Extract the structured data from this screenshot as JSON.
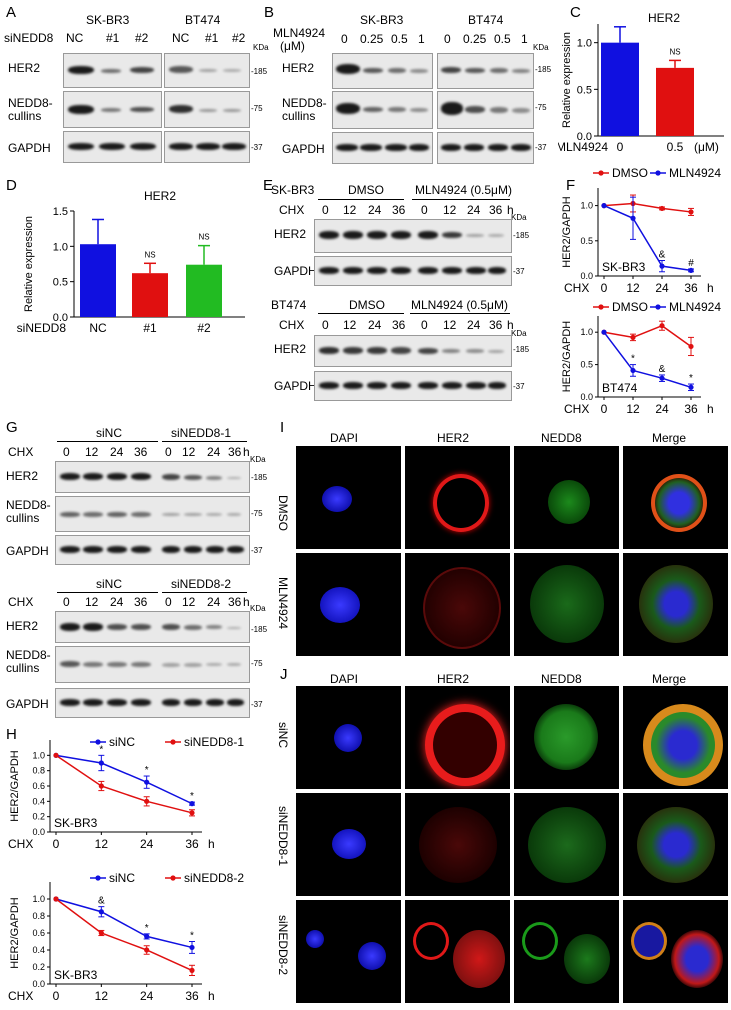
{
  "panels": {
    "A": "A",
    "B": "B",
    "C": "C",
    "D": "D",
    "E": "E",
    "F": "F",
    "G": "G",
    "H": "H",
    "I": "I",
    "J": "J"
  },
  "panelA": {
    "cell_lines": [
      "SK-BR3",
      "BT474"
    ],
    "row_label": "siNEDD8",
    "lanes": [
      "NC",
      "#1",
      "#2",
      "NC",
      "#1",
      "#2"
    ],
    "kda": "KDa",
    "proteins": [
      "HER2",
      "NEDD8-",
      "cullins",
      "GAPDH"
    ],
    "markers": [
      "-185",
      "-75",
      "-37"
    ]
  },
  "panelB": {
    "cell_lines": [
      "SK-BR3",
      "BT474"
    ],
    "row_label": "MLN4924",
    "unit": "(μM)",
    "lanes": [
      "0",
      "0.25",
      "0.5",
      "1",
      "0",
      "0.25",
      "0.5",
      "1"
    ],
    "kda": "KDa",
    "proteins": [
      "HER2",
      "NEDD8-",
      "cullins",
      "GAPDH"
    ],
    "markers": [
      "-185",
      "-75",
      "-37"
    ]
  },
  "panelE": {
    "top_line": "SK-BR3",
    "bottom_line": "BT474",
    "treatments": [
      "DMSO",
      "MLN4924 (0.5μM)"
    ],
    "chx": "CHX",
    "times": [
      "0",
      "12",
      "24",
      "36",
      "0",
      "12",
      "24",
      "36"
    ],
    "h": "h",
    "kda": "KDa",
    "proteins": [
      "HER2",
      "GAPDH"
    ],
    "markers": [
      "-185",
      "-37"
    ]
  },
  "panelG": {
    "top_group": [
      "siNC",
      "siNEDD8-1"
    ],
    "bottom_group": [
      "siNC",
      "siNEDD8-2"
    ],
    "chx": "CHX",
    "times": [
      "0",
      "12",
      "24",
      "36",
      "0",
      "12",
      "24",
      "36"
    ],
    "h": "h",
    "kda": "KDa",
    "proteins": [
      "HER2",
      "NEDD8-",
      "cullins",
      "GAPDH"
    ],
    "markers": [
      "-185",
      "-75",
      "-37"
    ]
  },
  "panelI": {
    "columns": [
      "DAPI",
      "HER2",
      "NEDD8",
      "Merge"
    ],
    "rows": [
      "DMSO",
      "MLN4924"
    ]
  },
  "panelJ": {
    "columns": [
      "DAPI",
      "HER2",
      "NEDD8",
      "Merge"
    ],
    "rows": [
      "siNC",
      "siNEDD8-1",
      "siNEDD8-2"
    ]
  },
  "colors": {
    "blue": "#1010e0",
    "red": "#e01010",
    "green": "#22bb22",
    "band": "#1a1a1a"
  },
  "chart_data": [
    {
      "id": "C",
      "type": "bar",
      "title": "HER2",
      "ylabel": "Relative expression",
      "xlabel": "MLN4924",
      "x_unit": "(μM)",
      "categories": [
        "0",
        "0.5"
      ],
      "values": [
        1.0,
        0.73
      ],
      "errors": [
        0.17,
        0.08
      ],
      "bar_colors": [
        "#1010e0",
        "#e01010"
      ],
      "annotations": [
        "",
        "NS"
      ],
      "ylim": [
        0,
        1.2
      ],
      "yticks": [
        0.0,
        0.5,
        1.0
      ]
    },
    {
      "id": "D",
      "type": "bar",
      "title": "HER2",
      "ylabel": "Relative expression",
      "xlabel": "siNEDD8",
      "categories": [
        "NC",
        "#1",
        "#2"
      ],
      "values": [
        1.03,
        0.62,
        0.74
      ],
      "errors": [
        0.35,
        0.14,
        0.27
      ],
      "bar_colors": [
        "#1010e0",
        "#e01010",
        "#22bb22"
      ],
      "annotations": [
        "",
        "NS",
        "NS"
      ],
      "ylim": [
        0,
        1.5
      ],
      "yticks": [
        0.0,
        0.5,
        1.0,
        1.5
      ]
    },
    {
      "id": "F1",
      "type": "line",
      "ylabel": "HER2/GAPDH",
      "xlabel": "CHX",
      "x_unit": "h",
      "inner_label": "SK-BR3",
      "x": [
        0,
        12,
        24,
        36
      ],
      "series": [
        {
          "name": "DMSO",
          "color": "#e01010",
          "values": [
            1.0,
            1.03,
            0.96,
            0.91
          ],
          "errors": [
            0,
            0.12,
            0.02,
            0.05
          ]
        },
        {
          "name": "MLN4924",
          "color": "#1010e0",
          "values": [
            1.0,
            0.82,
            0.14,
            0.08
          ],
          "errors": [
            0,
            0.3,
            0.08,
            0.02
          ]
        }
      ],
      "markers": [
        {
          "x": 24,
          "text": "&"
        },
        {
          "x": 36,
          "text": "#"
        }
      ],
      "ylim": [
        0,
        1.25
      ],
      "yticks": [
        0.0,
        0.5,
        1.0
      ],
      "legend": "top"
    },
    {
      "id": "F2",
      "type": "line",
      "ylabel": "HER2/GAPDH",
      "xlabel": "CHX",
      "x_unit": "h",
      "inner_label": "BT474",
      "x": [
        0,
        12,
        24,
        36
      ],
      "series": [
        {
          "name": "DMSO",
          "color": "#e01010",
          "values": [
            1.0,
            0.92,
            1.1,
            0.78
          ],
          "errors": [
            0,
            0.05,
            0.07,
            0.14
          ]
        },
        {
          "name": "MLN4924",
          "color": "#1010e0",
          "values": [
            1.0,
            0.41,
            0.29,
            0.15
          ],
          "errors": [
            0,
            0.09,
            0.05,
            0.05
          ]
        }
      ],
      "markers": [
        {
          "x": 12,
          "text": "*"
        },
        {
          "x": 24,
          "text": "&"
        },
        {
          "x": 36,
          "text": "*"
        }
      ],
      "ylim": [
        0,
        1.25
      ],
      "yticks": [
        0.0,
        0.5,
        1.0
      ],
      "legend": "top"
    },
    {
      "id": "H1",
      "type": "line",
      "ylabel": "HER2/GAPDH",
      "xlabel": "CHX",
      "x_unit": "h",
      "inner_label": "SK-BR3",
      "x": [
        0,
        12,
        24,
        36
      ],
      "series": [
        {
          "name": "siNC",
          "color": "#1010e0",
          "values": [
            1.0,
            0.9,
            0.65,
            0.37
          ],
          "errors": [
            0,
            0.1,
            0.08,
            0.02
          ]
        },
        {
          "name": "siNEDD8-1",
          "color": "#e01010",
          "values": [
            1.0,
            0.6,
            0.4,
            0.25
          ],
          "errors": [
            0,
            0.06,
            0.06,
            0.04
          ]
        }
      ],
      "markers": [
        {
          "x": 12,
          "text": "*"
        },
        {
          "x": 24,
          "text": "*"
        },
        {
          "x": 36,
          "text": "*"
        }
      ],
      "ylim": [
        0,
        1.2
      ],
      "yticks": [
        0.0,
        0.2,
        0.4,
        0.6,
        0.8,
        1.0
      ],
      "legend": "top"
    },
    {
      "id": "H2",
      "type": "line",
      "ylabel": "HER2/GAPDH",
      "xlabel": "CHX",
      "x_unit": "h",
      "inner_label": "SK-BR3",
      "x": [
        0,
        12,
        24,
        36
      ],
      "series": [
        {
          "name": "siNC",
          "color": "#1010e0",
          "values": [
            1.0,
            0.85,
            0.56,
            0.43
          ],
          "errors": [
            0,
            0.06,
            0.03,
            0.07
          ]
        },
        {
          "name": "siNEDD8-2",
          "color": "#e01010",
          "values": [
            1.0,
            0.6,
            0.4,
            0.16
          ],
          "errors": [
            0,
            0.03,
            0.05,
            0.06
          ]
        }
      ],
      "markers": [
        {
          "x": 12,
          "text": "&"
        },
        {
          "x": 24,
          "text": "*"
        },
        {
          "x": 36,
          "text": "*"
        }
      ],
      "ylim": [
        0,
        1.2
      ],
      "yticks": [
        0.0,
        0.2,
        0.4,
        0.6,
        0.8,
        1.0
      ],
      "legend": "top"
    }
  ]
}
